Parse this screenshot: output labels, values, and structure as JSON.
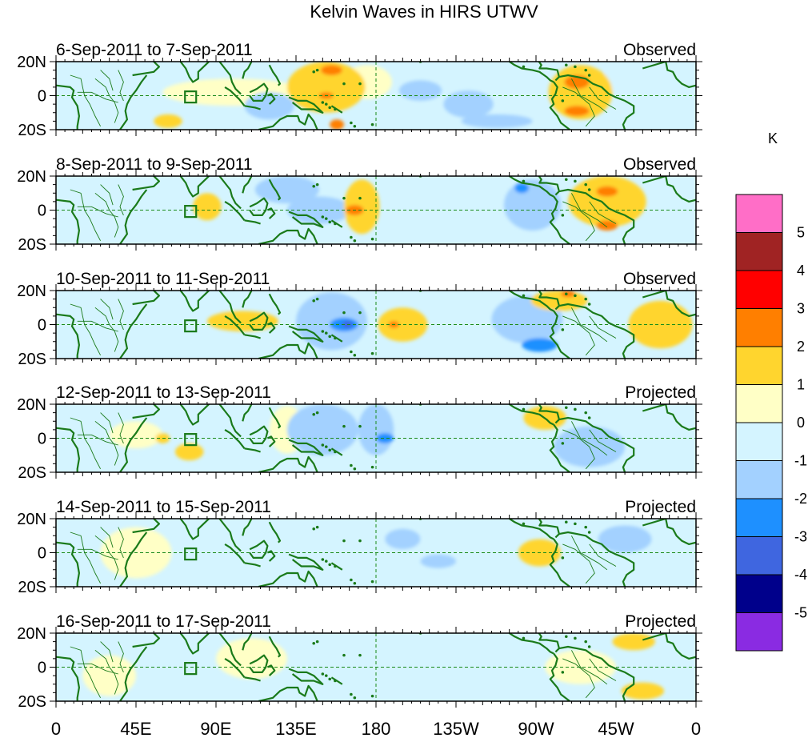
{
  "chart_data": {
    "type": "heatmap",
    "title": "Kelvin Waves in HIRS UTWV",
    "units": "K",
    "x_ticks": [
      "0",
      "45E",
      "90E",
      "135E",
      "180",
      "135W",
      "90W",
      "45W",
      "0"
    ],
    "y_ticks": [
      "20N",
      "0",
      "20S"
    ],
    "xlim": [
      0,
      360
    ],
    "ylim": [
      -20,
      20
    ],
    "colorbar": {
      "levels": [
        "5",
        "4",
        "3",
        "2",
        "1",
        "0",
        "-1",
        "-2",
        "-3",
        "-4",
        "-5"
      ],
      "colors": [
        "#ff6ec7",
        "#a02323",
        "#ff0000",
        "#ff7f00",
        "#ffd52e",
        "#ffffc6",
        "#d4f4ff",
        "#a3d1ff",
        "#1e90ff",
        "#3f66e0",
        "#00008b",
        "#8a2be2"
      ]
    },
    "panels": [
      {
        "date_range": "6-Sep-2011 to 7-Sep-2011",
        "status": "Observed",
        "anomalies": [
          {
            "lon": 100,
            "lat": 2,
            "rx": 40,
            "ry": 8,
            "v": 0.5
          },
          {
            "lon": 120,
            "lat": -6,
            "rx": 14,
            "ry": 8,
            "v": -1.5
          },
          {
            "lon": 152,
            "lat": 5,
            "rx": 22,
            "ry": 15,
            "v": 1.5
          },
          {
            "lon": 155,
            "lat": 15,
            "rx": 6,
            "ry": 3,
            "v": 2.5
          },
          {
            "lon": 152,
            "lat": 0,
            "rx": 4,
            "ry": 2,
            "v": 2.5
          },
          {
            "lon": 158,
            "lat": -17,
            "rx": 4,
            "ry": 3,
            "v": 2.5
          },
          {
            "lon": 175,
            "lat": 8,
            "rx": 14,
            "ry": 10,
            "v": 0.5
          },
          {
            "lon": 205,
            "lat": 3,
            "rx": 12,
            "ry": 6,
            "v": -1.5
          },
          {
            "lon": 232,
            "lat": -5,
            "rx": 14,
            "ry": 8,
            "v": -1.5
          },
          {
            "lon": 248,
            "lat": -15,
            "rx": 20,
            "ry": 4,
            "v": -1.5
          },
          {
            "lon": 295,
            "lat": 2,
            "rx": 18,
            "ry": 16,
            "v": 1.5
          },
          {
            "lon": 293,
            "lat": 8,
            "rx": 7,
            "ry": 4,
            "v": 2.5
          },
          {
            "lon": 293,
            "lat": -9,
            "rx": 7,
            "ry": 3,
            "v": 2.5
          },
          {
            "lon": 48,
            "lat": 2,
            "rx": 12,
            "ry": 10,
            "v": -0.5
          },
          {
            "lon": 320,
            "lat": 10,
            "rx": 12,
            "ry": 8,
            "v": -0.5
          },
          {
            "lon": 63,
            "lat": -15,
            "rx": 8,
            "ry": 4,
            "v": 1.5
          }
        ]
      },
      {
        "date_range": "8-Sep-2011 to 9-Sep-2011",
        "status": "Observed",
        "anomalies": [
          {
            "lon": 85,
            "lat": 2,
            "rx": 8,
            "ry": 8,
            "v": 1.5
          },
          {
            "lon": 130,
            "lat": 12,
            "rx": 18,
            "ry": 8,
            "v": -1.5
          },
          {
            "lon": 148,
            "lat": 0,
            "rx": 18,
            "ry": 8,
            "v": -1.5
          },
          {
            "lon": 172,
            "lat": 2,
            "rx": 10,
            "ry": 16,
            "v": 1.5
          },
          {
            "lon": 168,
            "lat": 0,
            "rx": 5,
            "ry": 3,
            "v": 2.5
          },
          {
            "lon": 205,
            "lat": 2,
            "rx": 12,
            "ry": 14,
            "v": -0.5
          },
          {
            "lon": 268,
            "lat": 3,
            "rx": 16,
            "ry": 15,
            "v": -1.5
          },
          {
            "lon": 262,
            "lat": 13,
            "rx": 4,
            "ry": 3,
            "v": -2.5
          },
          {
            "lon": 310,
            "lat": 5,
            "rx": 22,
            "ry": 15,
            "v": 1.5
          },
          {
            "lon": 310,
            "lat": 11,
            "rx": 6,
            "ry": 3,
            "v": 2.5
          },
          {
            "lon": 310,
            "lat": -9,
            "rx": 6,
            "ry": 3,
            "v": 2.5
          },
          {
            "lon": 40,
            "lat": 0,
            "rx": 15,
            "ry": 10,
            "v": -0.5
          }
        ]
      },
      {
        "date_range": "10-Sep-2011 to 11-Sep-2011",
        "status": "Observed",
        "anomalies": [
          {
            "lon": 105,
            "lat": 2,
            "rx": 20,
            "ry": 6,
            "v": 1.5
          },
          {
            "lon": 155,
            "lat": 2,
            "rx": 20,
            "ry": 17,
            "v": -1.5
          },
          {
            "lon": 162,
            "lat": 0,
            "rx": 8,
            "ry": 4,
            "v": -2.5
          },
          {
            "lon": 164,
            "lat": 0,
            "rx": 3,
            "ry": 2,
            "v": -3.5
          },
          {
            "lon": 195,
            "lat": 0,
            "rx": 14,
            "ry": 10,
            "v": 1.5
          },
          {
            "lon": 190,
            "lat": 0,
            "rx": 3,
            "ry": 2,
            "v": 2.5
          },
          {
            "lon": 265,
            "lat": 3,
            "rx": 20,
            "ry": 14,
            "v": -1.5
          },
          {
            "lon": 272,
            "lat": -12,
            "rx": 10,
            "ry": 4,
            "v": -2.5
          },
          {
            "lon": 283,
            "lat": 14,
            "rx": 16,
            "ry": 6,
            "v": 1.5
          },
          {
            "lon": 288,
            "lat": 18,
            "rx": 4,
            "ry": 2,
            "v": 2.5
          },
          {
            "lon": 340,
            "lat": 0,
            "rx": 18,
            "ry": 14,
            "v": 1.5
          },
          {
            "lon": 45,
            "lat": 0,
            "rx": 10,
            "ry": 6,
            "v": -0.5
          }
        ]
      },
      {
        "date_range": "12-Sep-2011 to 13-Sep-2011",
        "status": "Projected",
        "anomalies": [
          {
            "lon": 45,
            "lat": 2,
            "rx": 15,
            "ry": 8,
            "v": 0.5
          },
          {
            "lon": 60,
            "lat": 0,
            "rx": 4,
            "ry": 3,
            "v": 1.5
          },
          {
            "lon": 75,
            "lat": -8,
            "rx": 8,
            "ry": 5,
            "v": 1.5
          },
          {
            "lon": 130,
            "lat": 5,
            "rx": 10,
            "ry": 14,
            "v": 0.5
          },
          {
            "lon": 150,
            "lat": 5,
            "rx": 20,
            "ry": 15,
            "v": -1.5
          },
          {
            "lon": 180,
            "lat": 5,
            "rx": 10,
            "ry": 15,
            "v": -1.5
          },
          {
            "lon": 185,
            "lat": 0,
            "rx": 5,
            "ry": 3,
            "v": -2.5
          },
          {
            "lon": 275,
            "lat": 12,
            "rx": 12,
            "ry": 7,
            "v": 1.5
          },
          {
            "lon": 300,
            "lat": -5,
            "rx": 20,
            "ry": 12,
            "v": -1.5
          }
        ]
      },
      {
        "date_range": "14-Sep-2011 to 15-Sep-2011",
        "status": "Projected",
        "anomalies": [
          {
            "lon": 45,
            "lat": 0,
            "rx": 20,
            "ry": 15,
            "v": 0.5
          },
          {
            "lon": 180,
            "lat": 3,
            "rx": 30,
            "ry": 12,
            "v": -0.5
          },
          {
            "lon": 195,
            "lat": 8,
            "rx": 10,
            "ry": 6,
            "v": -1.5
          },
          {
            "lon": 215,
            "lat": -5,
            "rx": 10,
            "ry": 4,
            "v": -1.5
          },
          {
            "lon": 272,
            "lat": 0,
            "rx": 12,
            "ry": 8,
            "v": 1.5
          },
          {
            "lon": 320,
            "lat": 8,
            "rx": 15,
            "ry": 8,
            "v": -1.5
          }
        ]
      },
      {
        "date_range": "16-Sep-2011 to 17-Sep-2011",
        "status": "Projected",
        "anomalies": [
          {
            "lon": 30,
            "lat": -5,
            "rx": 15,
            "ry": 12,
            "v": 0.5
          },
          {
            "lon": 110,
            "lat": 5,
            "rx": 20,
            "ry": 12,
            "v": 0.5
          },
          {
            "lon": 215,
            "lat": 0,
            "rx": 35,
            "ry": 15,
            "v": -0.5
          },
          {
            "lon": 325,
            "lat": 15,
            "rx": 12,
            "ry": 5,
            "v": 1.5
          },
          {
            "lon": 330,
            "lat": -14,
            "rx": 12,
            "ry": 5,
            "v": 1.5
          },
          {
            "lon": 295,
            "lat": 0,
            "rx": 20,
            "ry": 10,
            "v": 0.5
          }
        ]
      }
    ]
  }
}
